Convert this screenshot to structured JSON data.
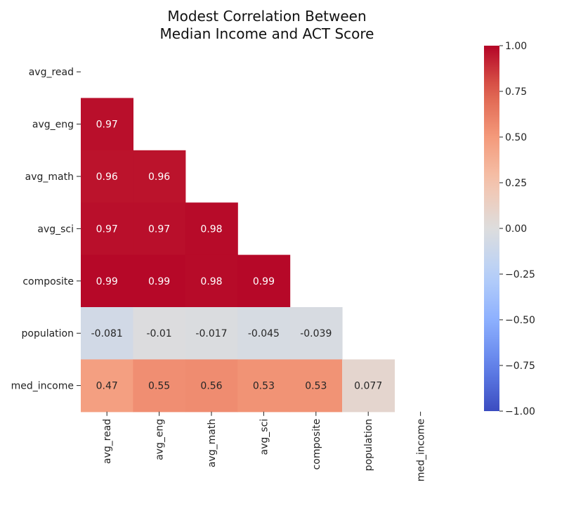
{
  "chart_data": {
    "type": "heatmap",
    "title_lines": [
      "Modest Correlation Between",
      "Median Income and ACT Score"
    ],
    "labels": [
      "avg_read",
      "avg_eng",
      "avg_math",
      "avg_sci",
      "composite",
      "population",
      "med_income"
    ],
    "mask": "upper-triangle-including-diagonal",
    "matrix": [
      [
        null,
        null,
        null,
        null,
        null,
        null,
        null
      ],
      [
        0.97,
        null,
        null,
        null,
        null,
        null,
        null
      ],
      [
        0.96,
        0.96,
        null,
        null,
        null,
        null,
        null
      ],
      [
        0.97,
        0.97,
        0.98,
        null,
        null,
        null,
        null
      ],
      [
        0.99,
        0.99,
        0.98,
        0.99,
        null,
        null,
        null
      ],
      [
        -0.081,
        -0.01,
        -0.017,
        -0.045,
        -0.039,
        null,
        null
      ],
      [
        0.47,
        0.55,
        0.56,
        0.53,
        0.53,
        0.077,
        null
      ]
    ],
    "annotations": [
      [
        null,
        null,
        null,
        null,
        null,
        null,
        null
      ],
      [
        "0.97",
        null,
        null,
        null,
        null,
        null,
        null
      ],
      [
        "0.96",
        "0.96",
        null,
        null,
        null,
        null,
        null
      ],
      [
        "0.97",
        "0.97",
        "0.98",
        null,
        null,
        null,
        null
      ],
      [
        "0.99",
        "0.99",
        "0.98",
        "0.99",
        null,
        null,
        null
      ],
      [
        "-0.081",
        "-0.01",
        "-0.017",
        "-0.045",
        "-0.039",
        null,
        null
      ],
      [
        "0.47",
        "0.55",
        "0.56",
        "0.53",
        "0.53",
        "0.077",
        null
      ]
    ],
    "colormap": "coolwarm",
    "vmin": -1.0,
    "vmax": 1.0,
    "colorbar_ticks": [
      1.0,
      0.75,
      0.5,
      0.25,
      0.0,
      -0.25,
      -0.5,
      -0.75,
      -1.0
    ],
    "colorbar_tick_labels": [
      "1.00",
      "0.75",
      "0.50",
      "0.25",
      "0.00",
      "−0.25",
      "−0.50",
      "−0.75",
      "−1.00"
    ],
    "colorbar_position": "right"
  }
}
